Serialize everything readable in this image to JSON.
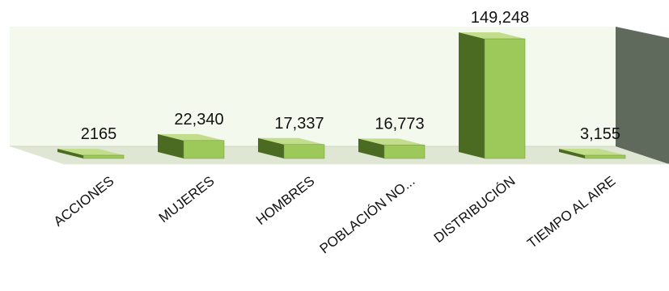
{
  "chart_data": {
    "type": "bar",
    "title": "",
    "xlabel": "",
    "ylabel": "",
    "categories": [
      "ACCIONES",
      "MUJERES",
      "HOMBRES",
      "POBLACIÓN NO...",
      "DISTRIBUCIÓN",
      "TIEMPO AL AIRE"
    ],
    "values": [
      2165,
      22340,
      17337,
      16773,
      149248,
      3155
    ],
    "value_labels": [
      "2165",
      "22,340",
      "17,337",
      "16,773",
      "149,248",
      "3,155"
    ],
    "ylim": [
      0,
      160000
    ],
    "grid": false,
    "legend": "none",
    "style": "3d-bar"
  },
  "colors": {
    "bar_front": "#9dc95a",
    "bar_top": "#c2de8a",
    "bar_side": "#4b6b22",
    "back_wall": "#f3f9ec",
    "floor": "#dfe6d3",
    "side_wall": "#5f6a5c"
  }
}
